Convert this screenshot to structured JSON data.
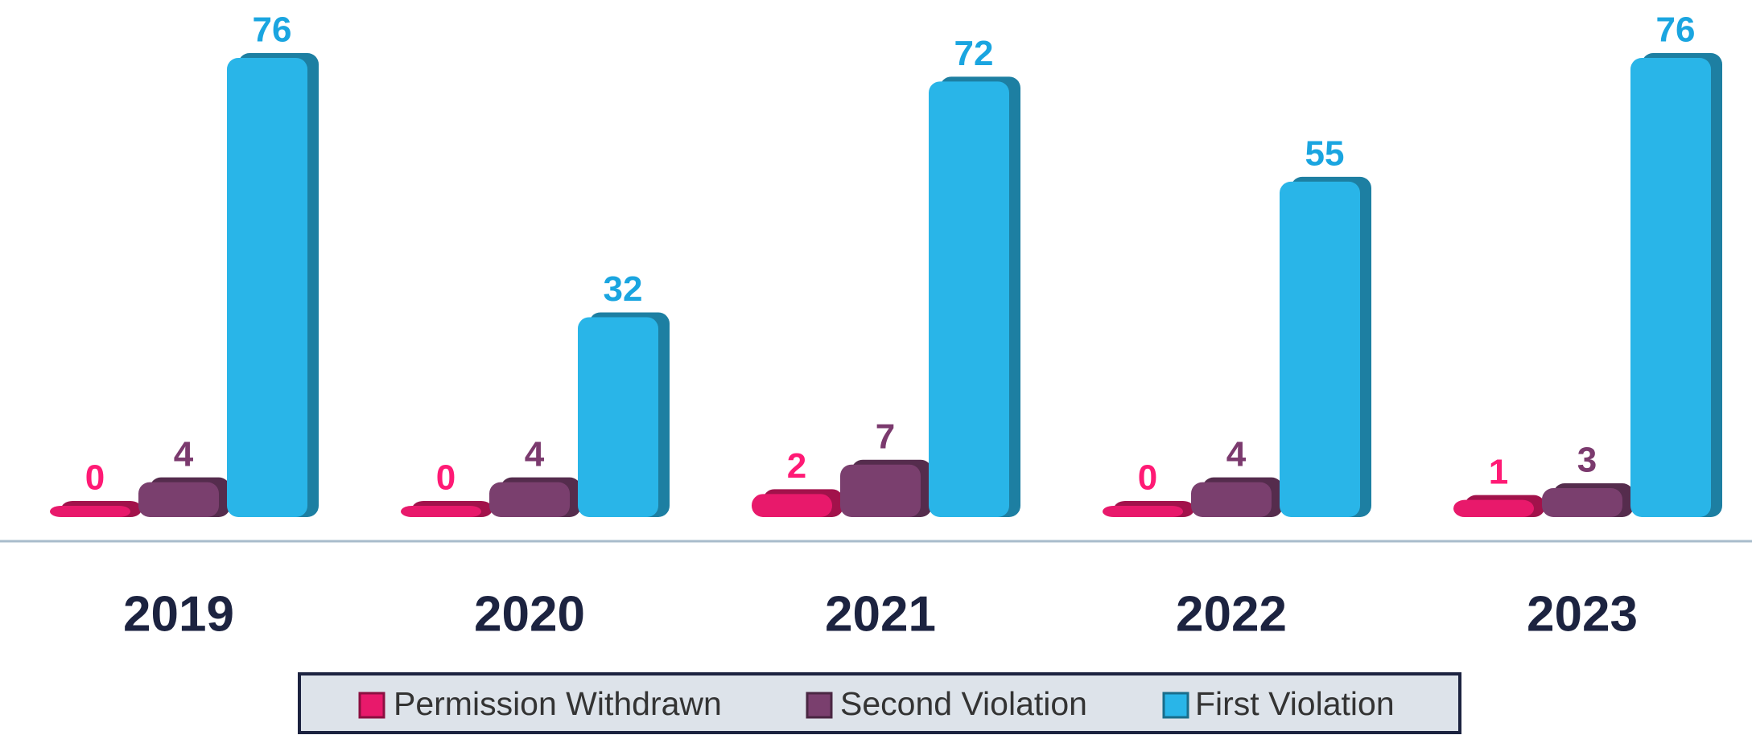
{
  "chart_data": {
    "type": "bar",
    "categories": [
      "2019",
      "2020",
      "2021",
      "2022",
      "2023"
    ],
    "series": [
      {
        "name": "Permission Withdrawn",
        "color": "#e8196b",
        "label_color": "#ff1a75",
        "values": [
          0,
          0,
          2,
          0,
          1
        ]
      },
      {
        "name": "Second Violation",
        "color": "#7a3f6e",
        "label_color": "#7b3a6e",
        "values": [
          4,
          4,
          7,
          4,
          3
        ]
      },
      {
        "name": "First Violation",
        "color": "#29b5e8",
        "label_color": "#1aa5e0",
        "values": [
          76,
          32,
          72,
          55,
          76
        ]
      }
    ],
    "legend": "bottom"
  }
}
